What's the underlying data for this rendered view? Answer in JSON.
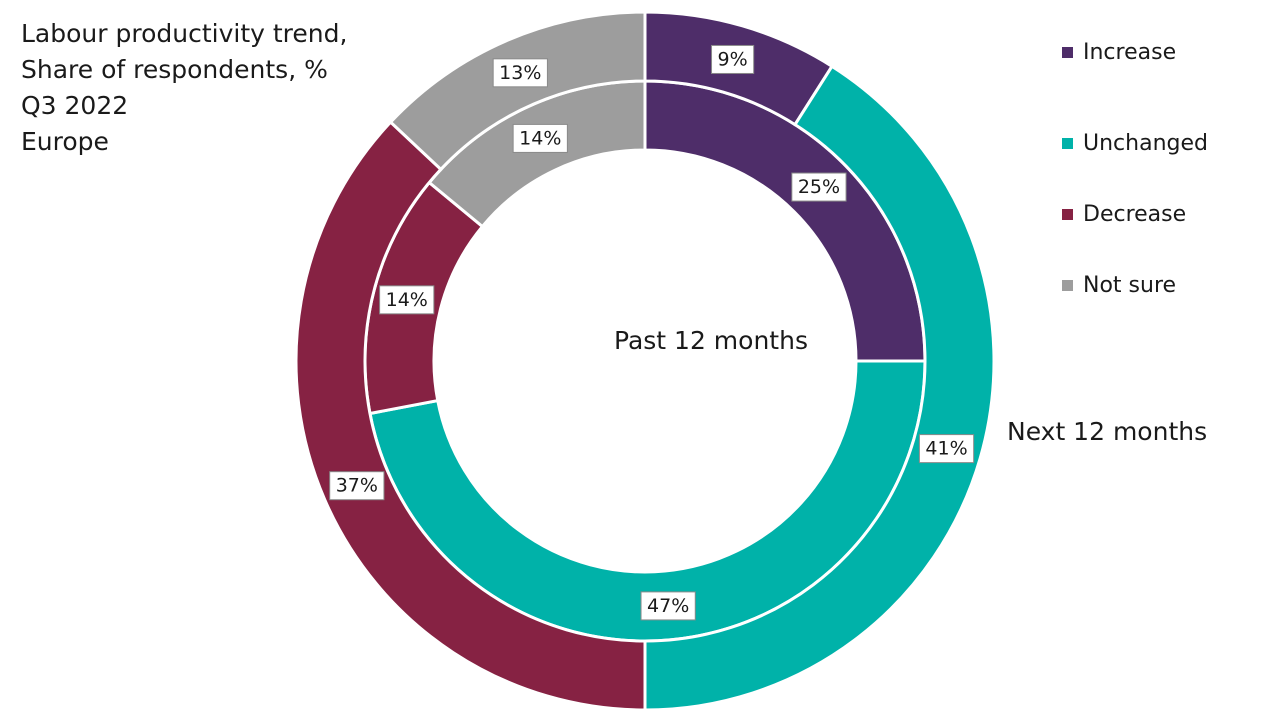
{
  "chart_data": {
    "type": "donut",
    "title_lines": [
      "Labour productivity trend,",
      "Share of respondents, %",
      "Q3 2022",
      "Europe"
    ],
    "categories": [
      "Increase",
      "Unchanged",
      "Decrease",
      "Not sure"
    ],
    "colors": [
      "#4e2d69",
      "#00b2a9",
      "#862243",
      "#9d9d9d"
    ],
    "series": [
      {
        "name": "Past 12 months",
        "ring": "inner",
        "values": [
          25,
          47,
          14,
          14
        ],
        "labels": [
          "25%",
          "47%",
          "14%",
          "14%"
        ]
      },
      {
        "name": "Next 12 months",
        "ring": "outer",
        "values": [
          9,
          41,
          37,
          13
        ],
        "labels": [
          "9%",
          "41%",
          "37%",
          "13%"
        ]
      }
    ],
    "legend_position": "top-right"
  }
}
